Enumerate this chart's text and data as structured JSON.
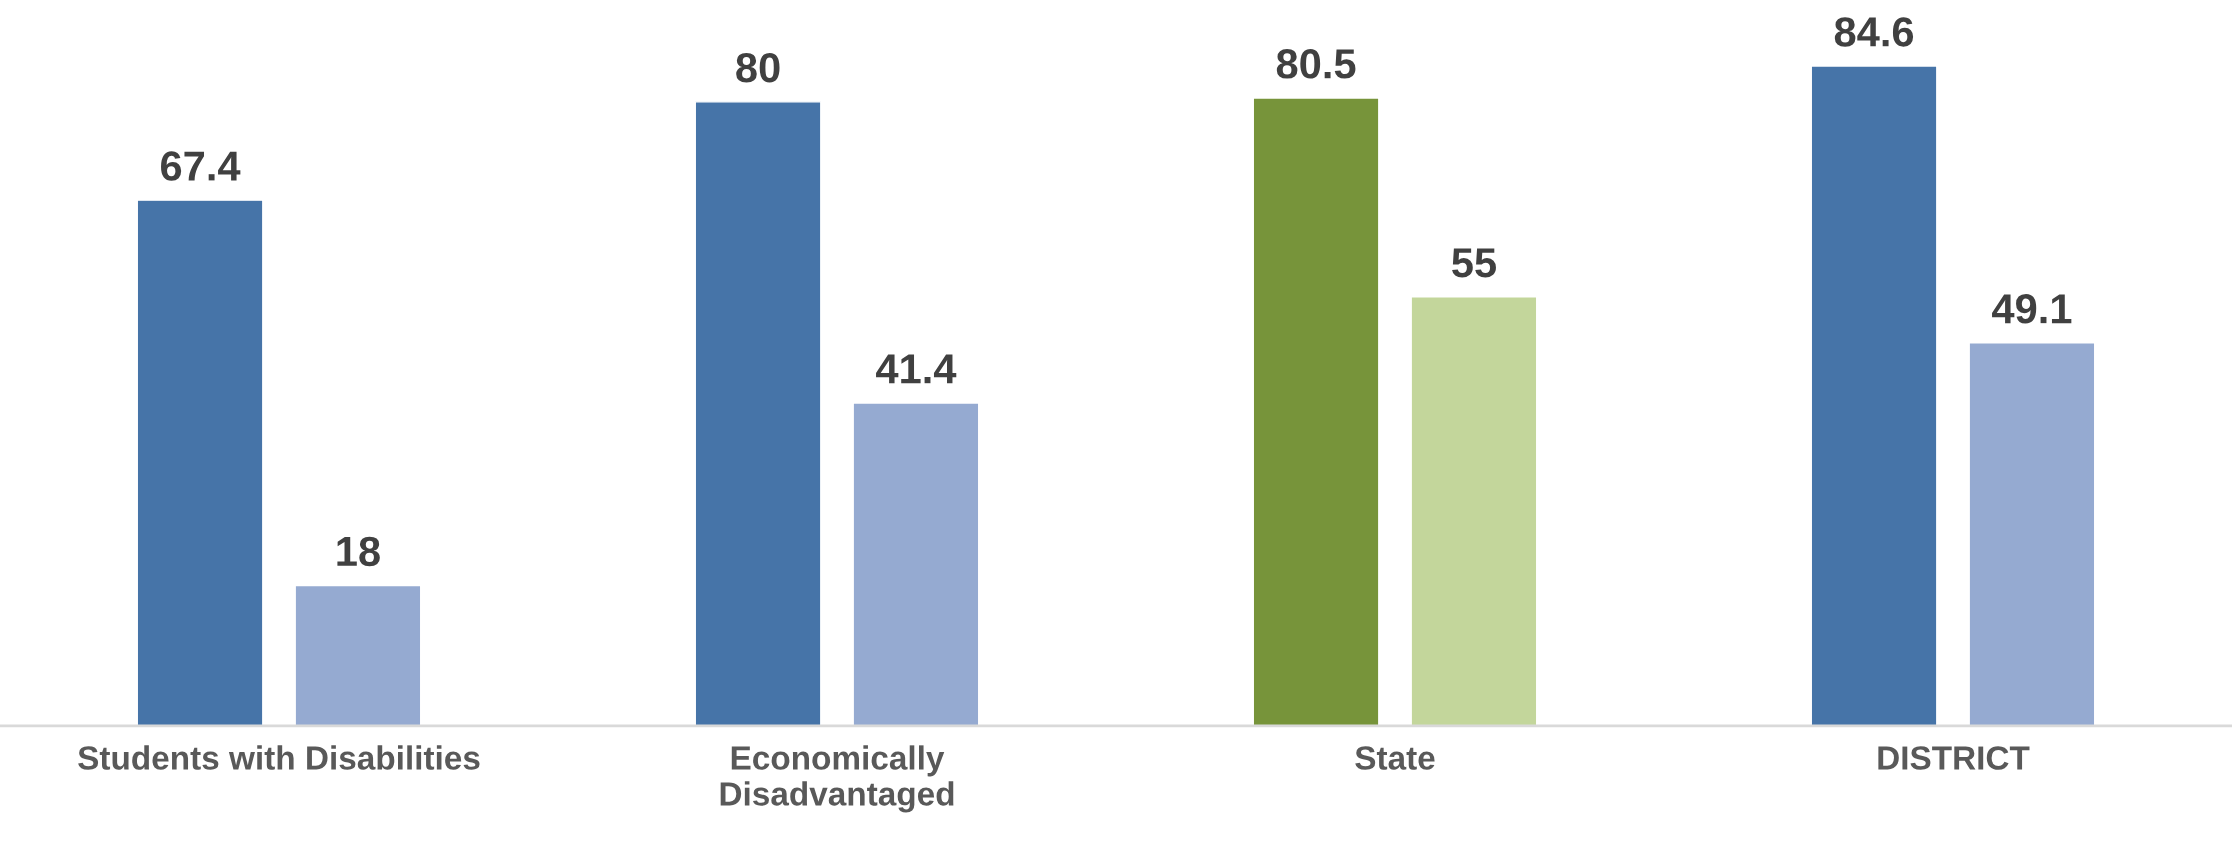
{
  "chart_data": {
    "type": "bar",
    "categories": [
      "Students with Disabilities",
      "Economically\nDisadvantaged",
      "State",
      "DISTRICT"
    ],
    "series": [
      {
        "colors": [
          "#4674a8",
          "#4674a8",
          "#77943a",
          "#4674a8"
        ],
        "values": [
          67.4,
          80,
          80.5,
          84.6
        ]
      },
      {
        "colors": [
          "#95aad1",
          "#95aad1",
          "#c3d69b",
          "#95aad1"
        ],
        "values": [
          18,
          41.4,
          55,
          49.1
        ]
      }
    ],
    "data_labels": true,
    "grid": false,
    "legend": false,
    "tick_labels": "x"
  }
}
